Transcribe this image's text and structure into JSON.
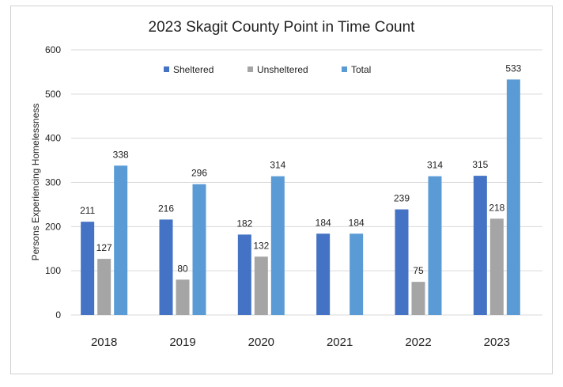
{
  "chart_data": {
    "type": "bar",
    "title": "2023 Skagit County Point in Time Count",
    "xlabel": "",
    "ylabel": "Persons Experiencing Homelessness",
    "categories": [
      "2018",
      "2019",
      "2020",
      "2021",
      "2022",
      "2023"
    ],
    "ylim": [
      0,
      600
    ],
    "yticks": [
      0,
      100,
      200,
      300,
      400,
      500,
      600
    ],
    "grid": true,
    "legend_position": "top",
    "series": [
      {
        "name": "Sheltered",
        "color": "#4472C4",
        "values": [
          211,
          216,
          182,
          184,
          239,
          315
        ]
      },
      {
        "name": "Unsheltered",
        "color": "#A5A5A5",
        "values": [
          127,
          80,
          132,
          null,
          75,
          218
        ]
      },
      {
        "name": "Total",
        "color": "#5B9BD5",
        "values": [
          338,
          296,
          314,
          184,
          314,
          533
        ]
      }
    ]
  }
}
